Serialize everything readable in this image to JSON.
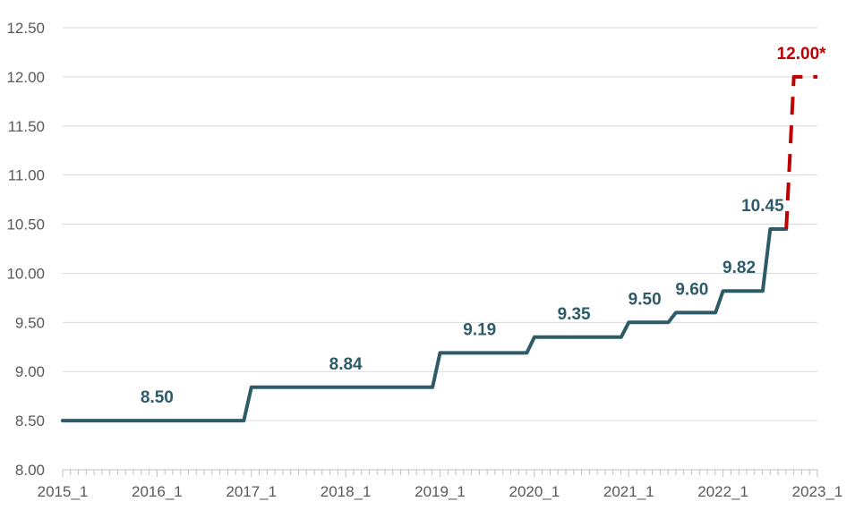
{
  "chart_data": {
    "type": "line",
    "title": "",
    "xlabel": "",
    "ylabel": "",
    "ylim": [
      8.0,
      12.5
    ],
    "yticks": [
      "8.00",
      "8.50",
      "9.00",
      "9.50",
      "10.00",
      "10.50",
      "11.00",
      "11.50",
      "12.00",
      "12.50"
    ],
    "xlim": [
      2015.0,
      2023.0
    ],
    "xticks": [
      {
        "label": "2015_1",
        "value": 2015
      },
      {
        "label": "2016_1",
        "value": 2016
      },
      {
        "label": "2017_1",
        "value": 2017
      },
      {
        "label": "2018_1",
        "value": 2018
      },
      {
        "label": "2019_1",
        "value": 2019
      },
      {
        "label": "2020_1",
        "value": 2020
      },
      {
        "label": "2021_1",
        "value": 2021
      },
      {
        "label": "2022_1",
        "value": 2022
      },
      {
        "label": "2023_1",
        "value": 2023
      }
    ],
    "grid": true,
    "series": [
      {
        "style": "solid-step",
        "color": "#2e5b68",
        "points": [
          [
            2015.0,
            8.5
          ],
          [
            2016.92,
            8.5
          ],
          [
            2017.0,
            8.84
          ],
          [
            2018.92,
            8.84
          ],
          [
            2019.0,
            9.19
          ],
          [
            2019.92,
            9.19
          ],
          [
            2020.0,
            9.35
          ],
          [
            2020.92,
            9.35
          ],
          [
            2021.0,
            9.5
          ],
          [
            2021.42,
            9.5
          ],
          [
            2021.5,
            9.6
          ],
          [
            2021.92,
            9.6
          ],
          [
            2022.0,
            9.82
          ],
          [
            2022.42,
            9.82
          ],
          [
            2022.5,
            10.45
          ],
          [
            2022.67,
            10.45
          ]
        ]
      },
      {
        "style": "dashed-step",
        "color": "#c00000",
        "points": [
          [
            2022.67,
            10.45
          ],
          [
            2022.75,
            12.0
          ],
          [
            2023.0,
            12.0
          ]
        ]
      }
    ],
    "labels": [
      {
        "text": "8.50",
        "x": 2016.0,
        "y": 8.5,
        "color": "#2e5b68"
      },
      {
        "text": "8.84",
        "x": 2018.0,
        "y": 8.84,
        "color": "#2e5b68"
      },
      {
        "text": "9.19",
        "x": 2019.42,
        "y": 9.19,
        "color": "#2e5b68"
      },
      {
        "text": "9.35",
        "x": 2020.42,
        "y": 9.35,
        "color": "#2e5b68"
      },
      {
        "text": "9.50",
        "x": 2021.17,
        "y": 9.5,
        "color": "#2e5b68"
      },
      {
        "text": "9.60",
        "x": 2021.67,
        "y": 9.6,
        "color": "#2e5b68"
      },
      {
        "text": "9.82",
        "x": 2022.17,
        "y": 9.82,
        "color": "#2e5b68"
      },
      {
        "text": "10.45",
        "x": 2022.42,
        "y": 10.45,
        "color": "#2e5b68"
      },
      {
        "text": "12.00*",
        "x": 2022.83,
        "y": 12.0,
        "color": "#c00000"
      }
    ]
  }
}
